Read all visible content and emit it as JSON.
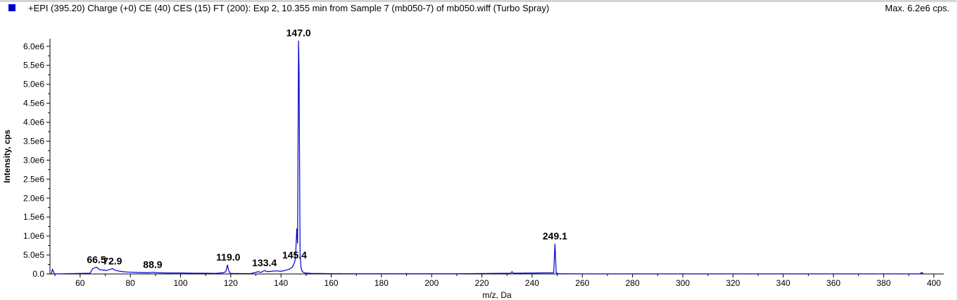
{
  "header": {
    "title": "+EPI (395.20) Charge (+0) CE (40) CES (15) FT (200): Exp 2, 10.355 min from Sample 7 (mb050-7) of mb050.wiff (Turbo Spray)",
    "max_label": "Max. 6.2e6 cps."
  },
  "colors": {
    "series": "#0000cc",
    "axis": "#000000",
    "background": "#ffffff"
  },
  "chart_data": {
    "type": "line",
    "xlabel": "m/z, Da",
    "ylabel": "Intensity, cps",
    "xlim": [
      48,
      404
    ],
    "ylim": [
      0,
      6200000
    ],
    "x_ticks": [
      60,
      80,
      100,
      120,
      140,
      160,
      180,
      200,
      220,
      240,
      260,
      280,
      300,
      320,
      340,
      360,
      380,
      400
    ],
    "y_ticks": [
      0,
      500000,
      1000000,
      1500000,
      2000000,
      2500000,
      3000000,
      3500000,
      4000000,
      4500000,
      5000000,
      5500000,
      6000000
    ],
    "y_tick_labels": [
      "0.0",
      "5.0e5",
      "1.0e6",
      "1.5e6",
      "2.0e6",
      "2.5e6",
      "3.0e6",
      "3.5e6",
      "4.0e6",
      "4.5e6",
      "5.0e6",
      "5.5e6",
      "6.0e6"
    ],
    "grid": false,
    "series": [
      {
        "x": [
          48.5,
          49.0,
          49.8,
          64.0,
          65.0,
          65.8,
          66.5,
          67.2,
          68.0,
          69.5,
          70.5,
          71.5,
          72.9,
          73.8,
          75.0,
          77.0,
          79.0,
          81.0,
          83.0,
          85.0,
          87.0,
          88.9,
          91.0,
          95.0,
          100.0,
          105.0,
          110.0,
          114.0,
          117.0,
          118.0,
          118.7,
          119.0,
          119.4,
          120.0,
          125.0,
          128.0,
          131.0,
          132.0,
          133.4,
          134.5,
          136.0,
          138.0,
          140.0,
          141.5,
          142.5,
          143.5,
          144.5,
          145.4,
          145.8,
          146.3,
          146.6,
          147.0,
          147.2,
          147.6,
          148.0,
          148.5,
          149.5,
          152.0,
          156.0,
          160.0,
          170.0,
          190.0,
          210.0,
          231.5,
          232.0,
          232.5,
          248.6,
          249.1,
          249.6,
          250.5,
          260.0,
          300.0,
          350.0,
          394.5,
          395.2,
          395.8
        ],
        "values": [
          0,
          120000,
          0,
          20000,
          140000,
          160000,
          180000,
          140000,
          110000,
          100000,
          90000,
          110000,
          140000,
          100000,
          80000,
          60000,
          50000,
          45000,
          40000,
          35000,
          30000,
          45000,
          30000,
          25000,
          25000,
          20000,
          20000,
          15000,
          30000,
          60000,
          240000,
          130000,
          50000,
          15000,
          10000,
          10000,
          60000,
          40000,
          90000,
          60000,
          70000,
          80000,
          70000,
          90000,
          110000,
          130000,
          180000,
          300000,
          450000,
          1200000,
          800000,
          6150000,
          5350000,
          500000,
          150000,
          60000,
          25000,
          15000,
          12000,
          8000,
          5000,
          4000,
          4000,
          20000,
          60000,
          20000,
          30000,
          800000,
          30000,
          4000,
          3000,
          3000,
          2000,
          2000,
          40000,
          2000
        ]
      }
    ],
    "annotations": [
      {
        "text": "147.0",
        "x": 147.0,
        "y": 6150000
      },
      {
        "text": "249.1",
        "x": 249.1,
        "y": 800000
      },
      {
        "text": "119.0",
        "x": 119.0,
        "y": 240000
      },
      {
        "text": "66.5",
        "x": 66.5,
        "y": 180000
      },
      {
        "text": "72.9",
        "x": 72.9,
        "y": 140000
      },
      {
        "text": "88.9",
        "x": 88.9,
        "y": 45000
      },
      {
        "text": "133.4",
        "x": 133.4,
        "y": 90000
      },
      {
        "text": "145.4",
        "x": 145.4,
        "y": 300000
      }
    ]
  }
}
